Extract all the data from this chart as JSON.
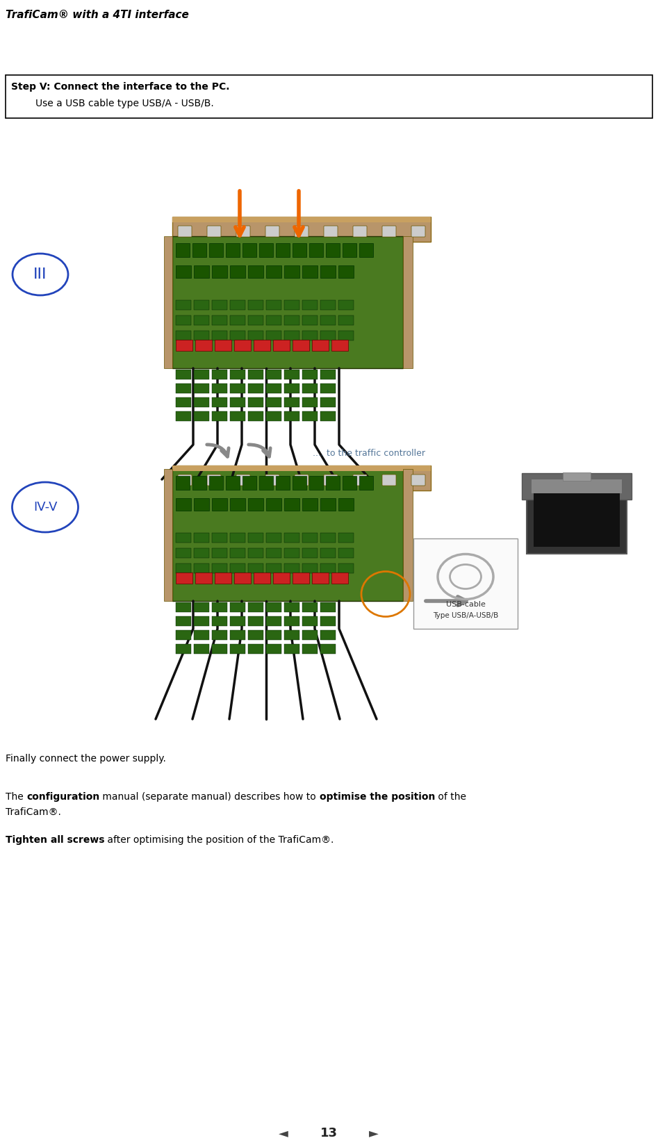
{
  "title": "TrafiCam® with a 4TI interface",
  "step_box_text_bold": "Step V: Connect the interface to the PC.",
  "step_box_text_normal": "        Use a USB cable type USB/A - USB/B.",
  "para1": "Finally connect the power supply.",
  "to_traffic": ".... to the traffic controller",
  "usb_label1": "USB-cable",
  "usb_label2": "Type USB/A-USB/B",
  "page_number": "13",
  "background_color": "#ffffff",
  "text_color": "#000000",
  "board_green": "#4a7a20",
  "board_dark_green": "#2d5010",
  "rail_color": "#b8956a",
  "rail_dark": "#8b6914",
  "rail_gray": "#aaaaaa",
  "red_conn": "#cc2222",
  "blue_ellipse": "#2244bb",
  "gray_arrow": "#888888",
  "orange_arrow": "#ee6600",
  "orange_circle": "#dd7700",
  "cable_black": "#111111",
  "traffic_text_color": "#557799",
  "title_fontsize": 11,
  "step_fontsize": 10,
  "body_fontsize": 10
}
